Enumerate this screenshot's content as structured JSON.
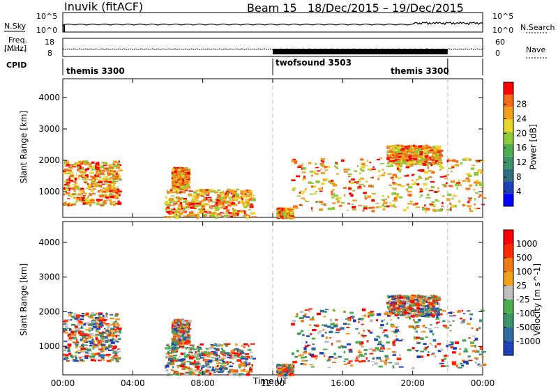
{
  "header": {
    "station": "Inuvik (fitACF)",
    "beam": "Beam 15",
    "dates": "18/Dec/2015 – 19/Dec/2015"
  },
  "top_panels": {
    "nsky_label": "N.Sky",
    "nsky_top": "10^5",
    "nsky_bottom": "10^0",
    "nsearch_label": "N.Search",
    "nsearch_top": "10^5",
    "nsearch_bottom": "10^0",
    "freq_label_1": "Freq.",
    "freq_label_2": "[MHz]",
    "freq_top": "18",
    "freq_bottom": "8",
    "nave_label": "Nave",
    "nave_top": "60",
    "nave_bottom": "0",
    "cpid_label": "CPID",
    "cpid_segments": [
      {
        "label": "themis 3300",
        "start_hour": 0,
        "end_hour": 12
      },
      {
        "label": "twofsound 3503",
        "start_hour": 12,
        "end_hour": 22
      },
      {
        "label": "themis 3300",
        "start_hour": 22,
        "end_hour": 24
      }
    ]
  },
  "chart_data": [
    {
      "type": "heatmap",
      "name": "power",
      "ylabel": "Slant Range [km]",
      "xlabel": "Time UT",
      "xlim_hours": [
        0,
        24
      ],
      "ylim": [
        180,
        4600
      ],
      "x_ticks": [
        "00:00",
        "04:00",
        "08:00",
        "12:00",
        "16:00",
        "20:00",
        "00:00"
      ],
      "y_ticks": [
        1000,
        2000,
        3000,
        4000
      ],
      "colorbar_label": "Power [dB]",
      "colorbar_ticks": [
        4,
        8,
        12,
        16,
        20,
        24,
        28
      ],
      "colorbar_colors": [
        "#0000ff",
        "#1f3fb8",
        "#2f6f7f",
        "#3d9468",
        "#4db050",
        "#8fc83a",
        "#e8d62a",
        "#f0a01a",
        "#f56c16",
        "#ff0000"
      ],
      "marker_lines_hours": [
        12,
        22
      ]
    },
    {
      "type": "heatmap",
      "name": "velocity",
      "ylabel": "Slant Range [km]",
      "xlabel": "Time UT",
      "xlim_hours": [
        0,
        24
      ],
      "ylim": [
        180,
        4600
      ],
      "x_ticks": [
        "00:00",
        "04:00",
        "08:00",
        "12:00",
        "16:00",
        "20:00",
        "00:00"
      ],
      "y_ticks": [
        1000,
        2000,
        3000,
        4000
      ],
      "colorbar_label": "Velocity [m s^-1]",
      "colorbar_ticks": [
        "1000",
        "500",
        "100",
        "25",
        "-25",
        "-100",
        "-500",
        "-1000"
      ],
      "colorbar_colors": [
        "#1f3fb8",
        "#2f6fa0",
        "#3d9468",
        "#4db050",
        "#bfbfbf",
        "#f0a01a",
        "#f27a12",
        "#ff2a00",
        "#ff0000"
      ],
      "marker_lines_hours": [
        12,
        22
      ]
    }
  ]
}
